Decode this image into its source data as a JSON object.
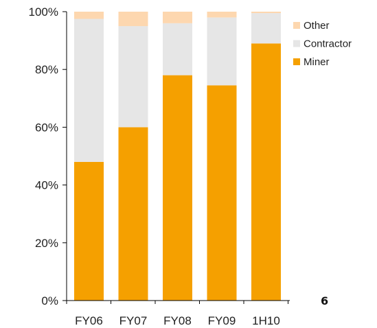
{
  "colors": {
    "Miner": "#F5A000",
    "Contractor": "#E6E6E6",
    "Other": "#FDD7AF",
    "axis": "#000000",
    "text": "#1f1f1f"
  },
  "page_number": "6",
  "chart_data": {
    "type": "bar",
    "stacked": true,
    "title": "",
    "xlabel": "",
    "ylabel": "",
    "categories": [
      "FY06",
      "FY07",
      "FY08",
      "FY09",
      "1H10"
    ],
    "y_tick_labels": [
      "0%",
      "20%",
      "40%",
      "60%",
      "80%",
      "100%"
    ],
    "ylim": [
      0,
      100
    ],
    "grid": false,
    "legend_position": "top-right",
    "legend": [
      "Other",
      "Contractor",
      "Miner"
    ],
    "series": [
      {
        "name": "Miner",
        "values": [
          48,
          60,
          78,
          74.5,
          89
        ]
      },
      {
        "name": "Contractor",
        "values": [
          49.5,
          35,
          18,
          23.5,
          10.5
        ]
      },
      {
        "name": "Other",
        "values": [
          2.5,
          5,
          4,
          2,
          0.5
        ]
      }
    ]
  }
}
